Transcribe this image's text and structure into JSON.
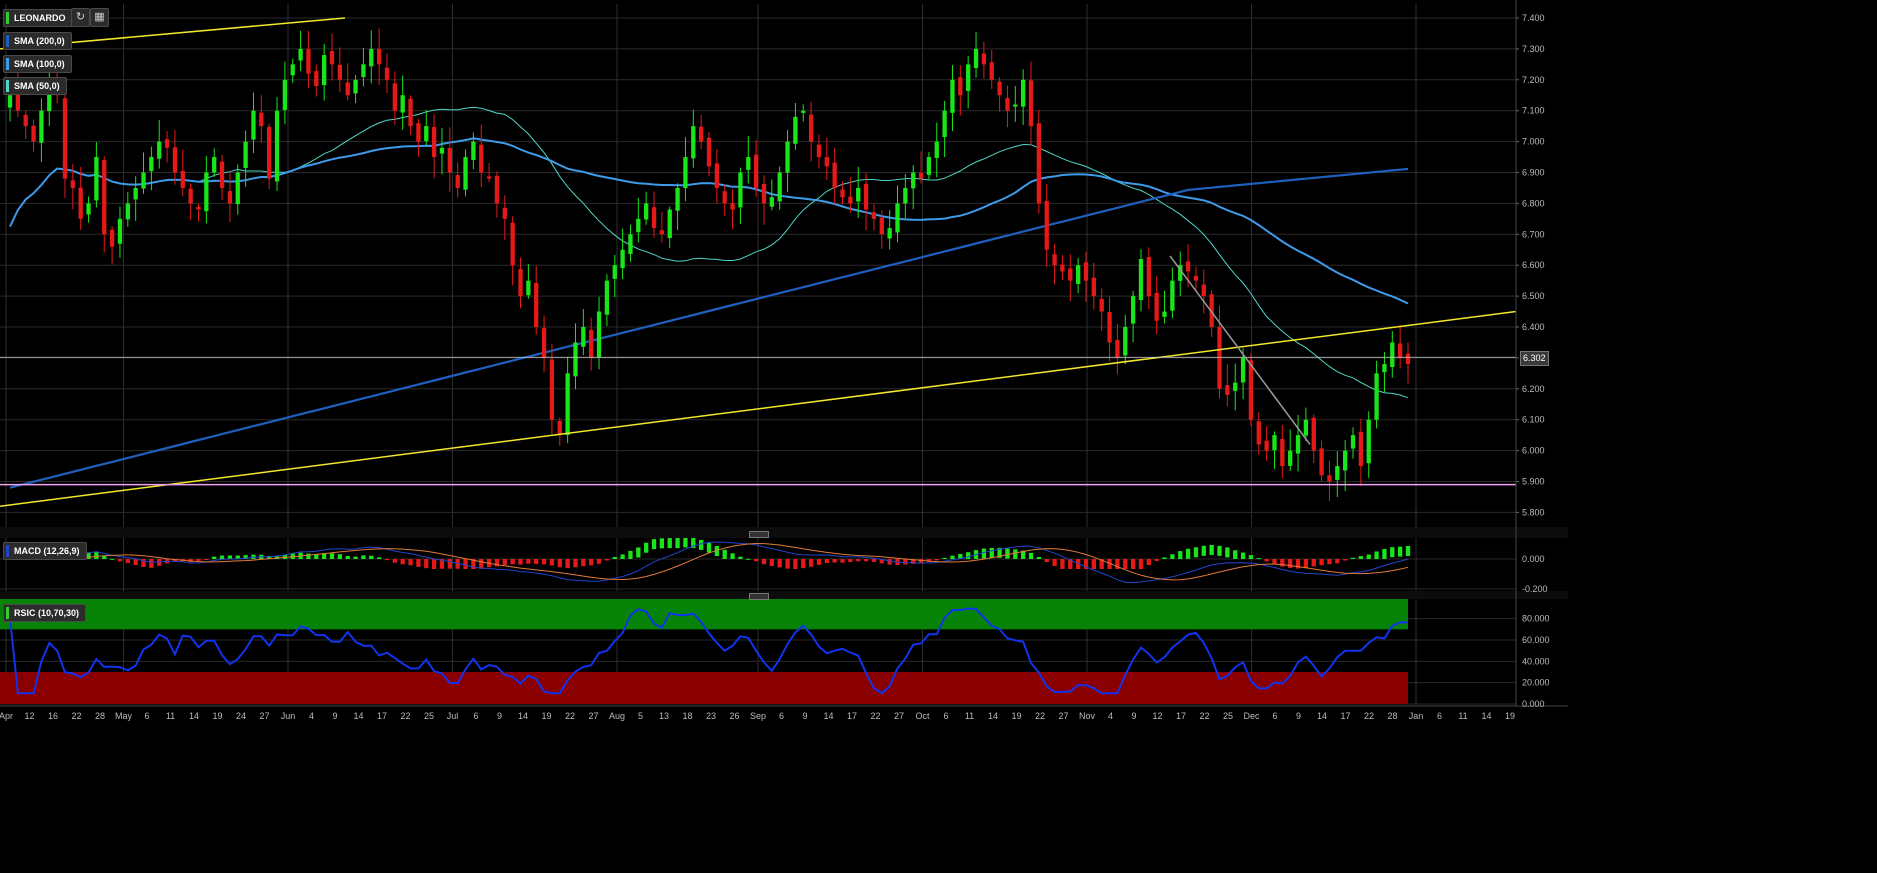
{
  "symbol": "LEONARDO",
  "indicators": {
    "sma200": {
      "label": "SMA (200,0)",
      "color": "#1f5fbf"
    },
    "sma100": {
      "label": "SMA (100,0)",
      "color": "#3d9be9"
    },
    "sma50": {
      "label": "SMA (50,0)",
      "color": "#4fd6c8"
    },
    "macd": {
      "label": "MACD (12,26,9)",
      "color": "#2244cc"
    },
    "rsic": {
      "label": "RSIC (10,70,30)",
      "color": "#1133ee"
    }
  },
  "icons": {
    "refresh": "refresh-icon",
    "chart_settings": "chart-settings-icon"
  },
  "current_price": "6.302",
  "chart_data": {
    "type": "candlestick",
    "price_axis": {
      "ticks": [
        "7.400",
        "7.300",
        "7.200",
        "7.100",
        "7.000",
        "6.900",
        "6.800",
        "6.700",
        "6.600",
        "6.500",
        "6.400",
        "6.300",
        "6.200",
        "6.100",
        "6.000",
        "5.900",
        "5.800"
      ],
      "ylim": [
        5.75,
        7.43
      ]
    },
    "macd_axis": {
      "ticks": [
        "0.000",
        "-0.200"
      ]
    },
    "rsi_axis": {
      "ticks": [
        "80.000",
        "60.000",
        "40.000",
        "20.000",
        "0.000"
      ],
      "ylim": [
        0,
        100
      ],
      "overbought": 70,
      "oversold": 30
    },
    "x_axis": {
      "ticks": [
        "Apr",
        "12",
        "16",
        "22",
        "28",
        "May",
        "6",
        "11",
        "14",
        "19",
        "24",
        "27",
        "Jun",
        "4",
        "9",
        "14",
        "17",
        "22",
        "25",
        "Jul",
        "6",
        "9",
        "14",
        "19",
        "22",
        "27",
        "Aug",
        "5",
        "13",
        "18",
        "23",
        "26",
        "Sep",
        "6",
        "9",
        "14",
        "17",
        "22",
        "27",
        "Oct",
        "6",
        "11",
        "14",
        "19",
        "22",
        "27",
        "Nov",
        "4",
        "9",
        "12",
        "17",
        "22",
        "25",
        "Dec",
        "6",
        "9",
        "14",
        "17",
        "22",
        "28",
        "Jan",
        "6",
        "11",
        "14",
        "19"
      ]
    },
    "colors": {
      "up": "#19e619",
      "down": "#e61919",
      "trend": "#f2e82b",
      "support": "#f0a0f0",
      "downtrend": "#9a9a9a"
    },
    "support_level": 5.89,
    "closes": [
      7.15,
      7.1,
      7.05,
      7.0,
      7.1,
      7.2,
      7.15,
      6.88,
      6.85,
      6.75,
      6.8,
      6.95,
      6.7,
      6.66,
      6.75,
      6.8,
      6.85,
      6.9,
      6.95,
      7.0,
      6.98,
      6.9,
      6.85,
      6.8,
      6.78,
      6.9,
      6.95,
      6.85,
      6.8,
      6.9,
      7.0,
      7.1,
      7.05,
      6.88,
      7.1,
      7.2,
      7.25,
      7.3,
      7.22,
      7.18,
      7.28,
      7.25,
      7.2,
      7.15,
      7.2,
      7.25,
      7.3,
      7.25,
      7.2,
      7.1,
      7.15,
      7.05,
      7.0,
      7.05,
      6.95,
      6.98,
      6.9,
      6.85,
      6.95,
      7.0,
      6.9,
      6.88,
      6.8,
      6.75,
      6.6,
      6.5,
      6.55,
      6.4,
      6.3,
      6.1,
      6.05,
      6.25,
      6.35,
      6.4,
      6.3,
      6.45,
      6.55,
      6.6,
      6.65,
      6.7,
      6.75,
      6.8,
      6.72,
      6.7,
      6.78,
      6.85,
      6.95,
      7.05,
      7.0,
      6.92,
      6.85,
      6.8,
      6.78,
      6.9,
      6.95,
      6.85,
      6.8,
      6.82,
      6.9,
      7.0,
      7.08,
      7.1,
      7.0,
      6.95,
      6.92,
      6.85,
      6.82,
      6.8,
      6.85,
      6.78,
      6.75,
      6.7,
      6.72,
      6.8,
      6.85,
      6.9,
      6.88,
      6.95,
      7.0,
      7.1,
      7.2,
      7.15,
      7.25,
      7.3,
      7.25,
      7.2,
      7.15,
      7.1,
      7.12,
      7.2,
      7.05,
      6.8,
      6.65,
      6.6,
      6.58,
      6.55,
      6.6,
      6.55,
      6.5,
      6.45,
      6.35,
      6.3,
      6.4,
      6.5,
      6.62,
      6.5,
      6.42,
      6.45,
      6.55,
      6.6,
      6.58,
      6.55,
      6.5,
      6.4,
      6.2,
      6.18,
      6.22,
      6.3,
      6.1,
      6.02,
      6.0,
      6.05,
      5.95,
      6.0,
      6.05,
      6.1,
      6.0,
      5.92,
      5.9,
      5.95,
      6.0,
      6.05,
      5.95,
      6.1,
      6.25,
      6.28,
      6.35,
      6.3,
      6.28
    ]
  }
}
